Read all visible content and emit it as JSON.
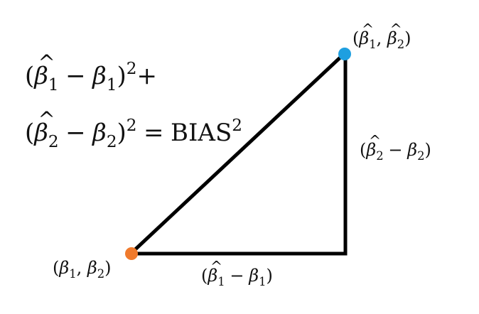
{
  "diagram": {
    "colors": {
      "line": "#000000",
      "true_point": "#f07a2c",
      "estimate_point": "#1e9fe0"
    },
    "labels": {
      "estimate_point": {
        "open": "(",
        "beta1": "β",
        "sub1": "1",
        "comma": ", ",
        "beta2": "β",
        "sub2": "2",
        "close": ")"
      },
      "true_point": {
        "open": "(",
        "beta1": "β",
        "sub1": "1",
        "comma": ", ",
        "beta2": "β",
        "sub2": "2",
        "close": ")"
      },
      "vertical_leg": {
        "open": "(",
        "beta_hat": "β",
        "sub_hat": "2",
        "minus": "−",
        "beta": "β",
        "sub": "2",
        "close": ")"
      },
      "horizontal_leg": {
        "open": "(",
        "beta_hat": "β",
        "sub_hat": "1",
        "minus": "−",
        "beta": "β",
        "sub": "1",
        "close": ")"
      }
    },
    "equation": {
      "line1": {
        "open": "(",
        "beta_hat": "β",
        "sub_hat": "1",
        "minus": "−",
        "beta": "β",
        "sub": "1",
        "close": ")",
        "power": "2",
        "plus": "+"
      },
      "line2": {
        "open": "(",
        "beta_hat": "β",
        "sub_hat": "2",
        "minus": "−",
        "beta": "β",
        "sub": "2",
        "close": ")",
        "power": "2",
        "equals": "=",
        "rhs": "BIAS",
        "rhs_power": "2"
      }
    }
  }
}
